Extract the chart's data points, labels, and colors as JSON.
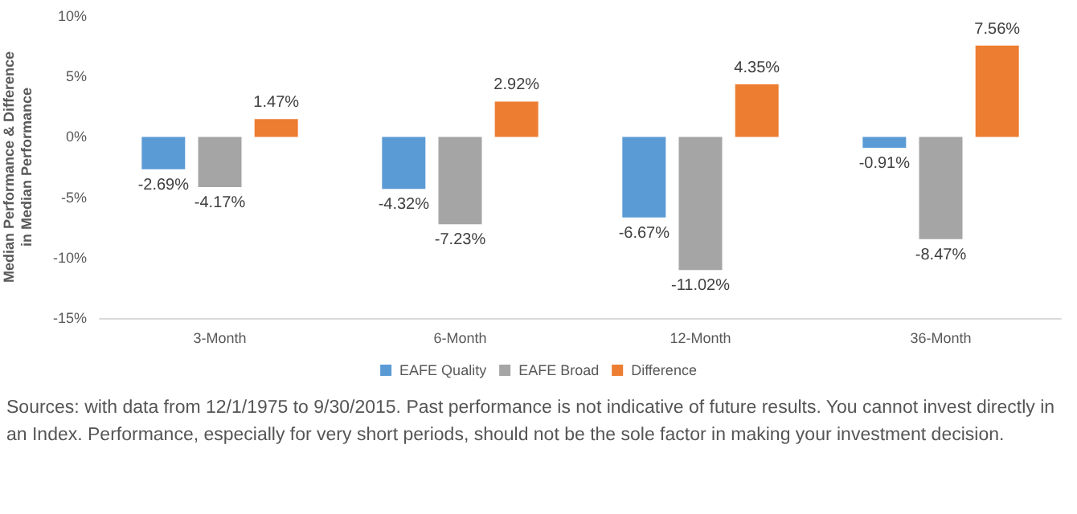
{
  "chart_data": {
    "type": "bar",
    "ylabel": "Median Performance & Difference in Median Performance",
    "categories": [
      "3-Month",
      "6-Month",
      "12-Month",
      "36-Month"
    ],
    "series": [
      {
        "name": "EAFE Quality",
        "color": "#5b9bd5",
        "values": [
          -2.69,
          -4.32,
          -6.67,
          -0.91
        ],
        "value_labels": [
          "-2.69%",
          "-4.32%",
          "-6.67%",
          "-0.91%"
        ]
      },
      {
        "name": "EAFE Broad",
        "color": "#a5a5a5",
        "values": [
          -4.17,
          -7.23,
          -11.02,
          -8.47
        ],
        "value_labels": [
          "-4.17%",
          "-7.23%",
          "-11.02%",
          "-8.47%"
        ]
      },
      {
        "name": "Difference",
        "color": "#ed7d31",
        "values": [
          1.47,
          2.92,
          4.35,
          7.56
        ],
        "value_labels": [
          "1.47%",
          "2.92%",
          "4.35%",
          "7.56%"
        ]
      }
    ],
    "ylim": [
      -15,
      10
    ],
    "yticks": [
      {
        "value": -15,
        "label": "-15%"
      },
      {
        "value": -10,
        "label": "-10%"
      },
      {
        "value": -5,
        "label": "-5%"
      },
      {
        "value": 0,
        "label": "0%"
      },
      {
        "value": 5,
        "label": "5%"
      },
      {
        "value": 10,
        "label": "10%"
      }
    ],
    "grid": false,
    "legend": "bottom",
    "annotations": [
      "Sources: with data from 12/1/1975 to 9/30/2015. Past performance is not indicative of future results. You cannot invest directly in an Index. Performance, especially for very short periods, should not be the sole factor in making your investment decision."
    ]
  }
}
